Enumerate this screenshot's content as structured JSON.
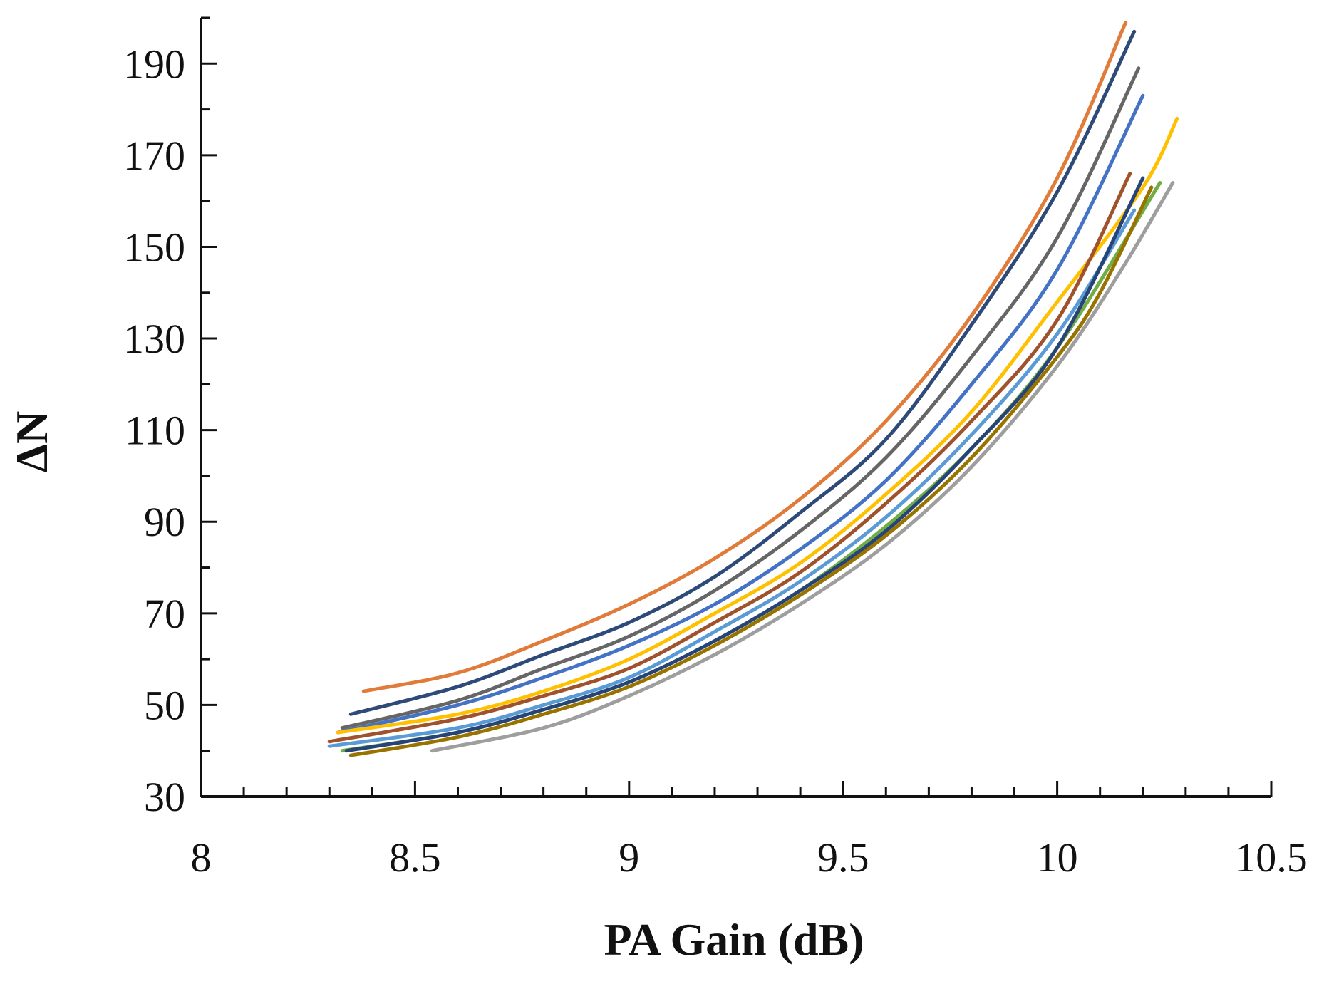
{
  "chart_data": {
    "type": "line",
    "title": "",
    "xlabel": "PA Gain (dB)",
    "ylabel": "ΔN",
    "xlim": [
      8,
      10.5
    ],
    "ylim": [
      30,
      200
    ],
    "xticks": [
      8,
      8.5,
      9,
      9.5,
      10,
      10.5
    ],
    "xtick_labels": [
      "8",
      "8.5",
      "9",
      "9.5",
      "10",
      "10.5"
    ],
    "yticks": [
      30,
      50,
      70,
      90,
      110,
      130,
      150,
      170,
      190
    ],
    "ytick_labels": [
      "30",
      "50",
      "70",
      "90",
      "110",
      "130",
      "150",
      "170",
      "190"
    ],
    "x_minor_step": 0.1,
    "y_minor_step": 10,
    "grid": false,
    "legend": "none",
    "series": [
      {
        "color": "#e07b39",
        "points": [
          [
            8.38,
            53
          ],
          [
            8.6,
            57
          ],
          [
            8.8,
            64
          ],
          [
            9.0,
            72
          ],
          [
            9.2,
            82
          ],
          [
            9.4,
            95
          ],
          [
            9.6,
            112
          ],
          [
            9.8,
            135
          ],
          [
            10.0,
            165
          ],
          [
            10.16,
            199
          ]
        ]
      },
      {
        "color": "#2e4a78",
        "points": [
          [
            8.35,
            48
          ],
          [
            8.6,
            54
          ],
          [
            8.8,
            61
          ],
          [
            9.0,
            68
          ],
          [
            9.2,
            78
          ],
          [
            9.4,
            92
          ],
          [
            9.6,
            108
          ],
          [
            9.8,
            133
          ],
          [
            10.0,
            162
          ],
          [
            10.18,
            197
          ]
        ]
      },
      {
        "color": "#666666",
        "points": [
          [
            8.33,
            45
          ],
          [
            8.6,
            51
          ],
          [
            8.8,
            58
          ],
          [
            9.0,
            65
          ],
          [
            9.2,
            75
          ],
          [
            9.4,
            88
          ],
          [
            9.6,
            104
          ],
          [
            9.8,
            126
          ],
          [
            10.0,
            152
          ],
          [
            10.19,
            189
          ]
        ]
      },
      {
        "color": "#4472c4",
        "points": [
          [
            8.32,
            44
          ],
          [
            8.6,
            50
          ],
          [
            8.8,
            56
          ],
          [
            9.0,
            63
          ],
          [
            9.2,
            72
          ],
          [
            9.4,
            84
          ],
          [
            9.6,
            99
          ],
          [
            9.8,
            120
          ],
          [
            10.0,
            145
          ],
          [
            10.2,
            183
          ]
        ]
      },
      {
        "color": "#ffc000",
        "points": [
          [
            8.32,
            44
          ],
          [
            8.6,
            48
          ],
          [
            8.8,
            53
          ],
          [
            9.0,
            60
          ],
          [
            9.2,
            70
          ],
          [
            9.4,
            81
          ],
          [
            9.6,
            96
          ],
          [
            9.8,
            114
          ],
          [
            10.0,
            138
          ],
          [
            10.2,
            163
          ],
          [
            10.28,
            178
          ]
        ]
      },
      {
        "color": "#a0522d",
        "points": [
          [
            8.3,
            42
          ],
          [
            8.6,
            47
          ],
          [
            8.8,
            52
          ],
          [
            9.0,
            58
          ],
          [
            9.2,
            68
          ],
          [
            9.4,
            79
          ],
          [
            9.6,
            94
          ],
          [
            9.8,
            112
          ],
          [
            10.0,
            134
          ],
          [
            10.17,
            166
          ]
        ]
      },
      {
        "color": "#5b9bd5",
        "points": [
          [
            8.3,
            41
          ],
          [
            8.6,
            45
          ],
          [
            8.8,
            50
          ],
          [
            9.0,
            56
          ],
          [
            9.2,
            66
          ],
          [
            9.4,
            77
          ],
          [
            9.6,
            91
          ],
          [
            9.8,
            109
          ],
          [
            10.0,
            131
          ],
          [
            10.18,
            158
          ]
        ]
      },
      {
        "color": "#70ad47",
        "points": [
          [
            8.33,
            40
          ],
          [
            8.6,
            44
          ],
          [
            8.8,
            49
          ],
          [
            9.0,
            55
          ],
          [
            9.2,
            64
          ],
          [
            9.4,
            75
          ],
          [
            9.6,
            89
          ],
          [
            9.8,
            106
          ],
          [
            10.0,
            128
          ],
          [
            10.24,
            164
          ]
        ]
      },
      {
        "color": "#264478",
        "points": [
          [
            8.34,
            40
          ],
          [
            8.6,
            44
          ],
          [
            8.8,
            49
          ],
          [
            9.0,
            55
          ],
          [
            9.2,
            64
          ],
          [
            9.4,
            75
          ],
          [
            9.6,
            88
          ],
          [
            9.8,
            106
          ],
          [
            10.0,
            128
          ],
          [
            10.2,
            165
          ]
        ]
      },
      {
        "color": "#9e9e9e",
        "points": [
          [
            8.54,
            40
          ],
          [
            8.8,
            45
          ],
          [
            9.0,
            52
          ],
          [
            9.2,
            61
          ],
          [
            9.4,
            72
          ],
          [
            9.6,
            85
          ],
          [
            9.8,
            102
          ],
          [
            10.0,
            124
          ],
          [
            10.15,
            145
          ],
          [
            10.27,
            164
          ]
        ]
      },
      {
        "color": "#997300",
        "points": [
          [
            8.35,
            39
          ],
          [
            8.6,
            43
          ],
          [
            8.8,
            48
          ],
          [
            9.0,
            54
          ],
          [
            9.2,
            63
          ],
          [
            9.4,
            74
          ],
          [
            9.6,
            87
          ],
          [
            9.8,
            104
          ],
          [
            10.0,
            126
          ],
          [
            10.1,
            140
          ],
          [
            10.22,
            163
          ]
        ]
      }
    ]
  }
}
